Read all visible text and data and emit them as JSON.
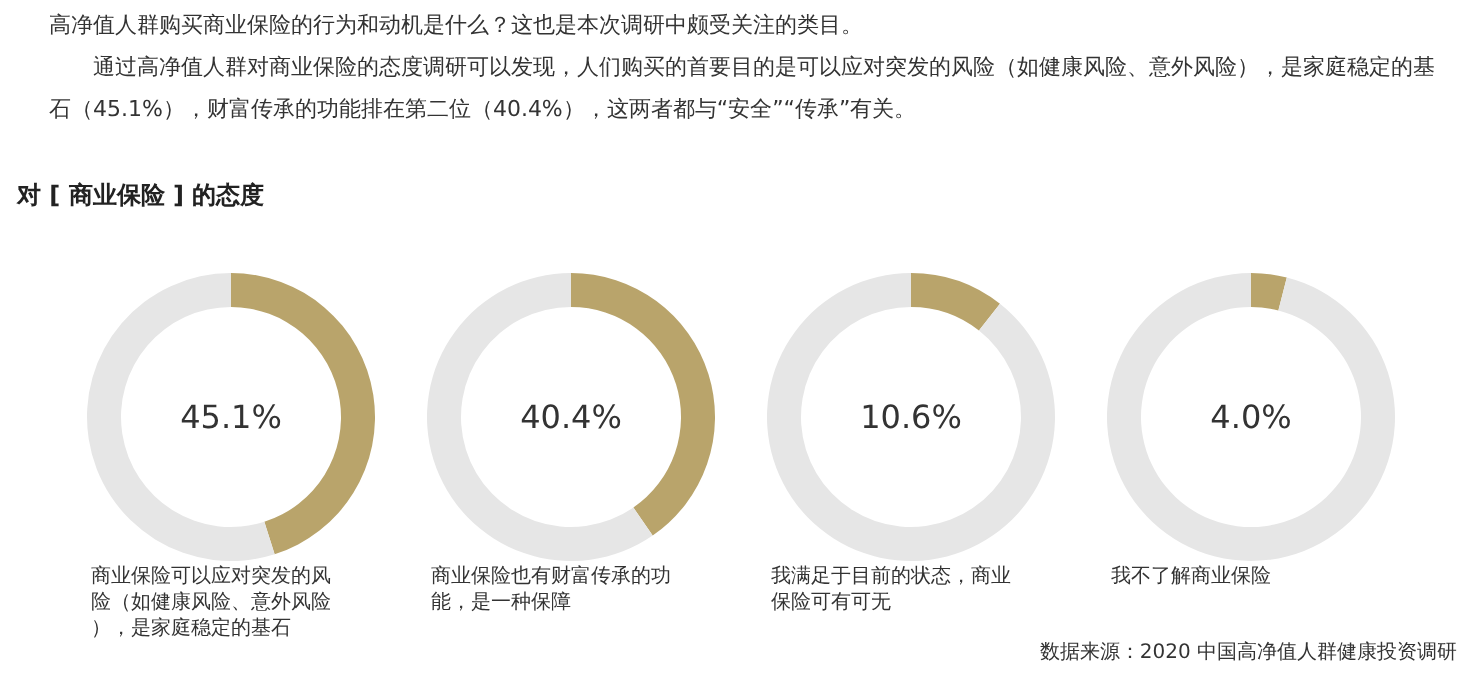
{
  "chart_data": [
    {
      "type": "donut",
      "title": "对 [ 商业保险 ] 的态度",
      "annotations": [
        "高净值人群购买商业保险的行为和动机是什么？这也是本次调研中颇受关注的类目。",
        "通过高净值人群对商业保险的态度调研可以发现，人们购买的首要目的是可以应对突发的风险（如健康风险、意外风险），是家庭稳定的基石（45.1%），财富传承的功能排在第二位（40.4%），这两者都与“安全”“传承”有关。",
        "45.1%"
      ],
      "xlabel": "商业保险可以应对突发的风险（如健康风险、意外风险），是家庭稳定的基石",
      "categories": [
        null,
        null
      ],
      "values": [
        45.1,
        54.9
      ],
      "colors": [
        "#b9a46b",
        "#e6e6e6"
      ]
    },
    {
      "type": "donut",
      "annotations": [
        "40.4%"
      ],
      "xlabel": "商业保险也有财富传承的功能，是一种保障",
      "categories": [
        null,
        null
      ],
      "values": [
        40.4,
        59.6
      ],
      "colors": [
        "#b9a46b",
        "#e6e6e6"
      ]
    },
    {
      "type": "donut",
      "annotations": [
        "10.6%"
      ],
      "xlabel": "我满足于目前的状态，商业保险可有可无",
      "categories": [
        null,
        null
      ],
      "values": [
        10.6,
        89.4
      ],
      "colors": [
        "#b9a46b",
        "#e6e6e6"
      ]
    },
    {
      "type": "donut",
      "annotations": [
        "4.0%",
        "数据来源：2020 中国高净值人群健康投资调研"
      ],
      "xlabel": "我不了解商业保险",
      "categories": [
        null,
        null
      ],
      "values": [
        4.0,
        96.0
      ],
      "colors": [
        "#b9a46b",
        "#e6e6e6"
      ]
    }
  ]
}
